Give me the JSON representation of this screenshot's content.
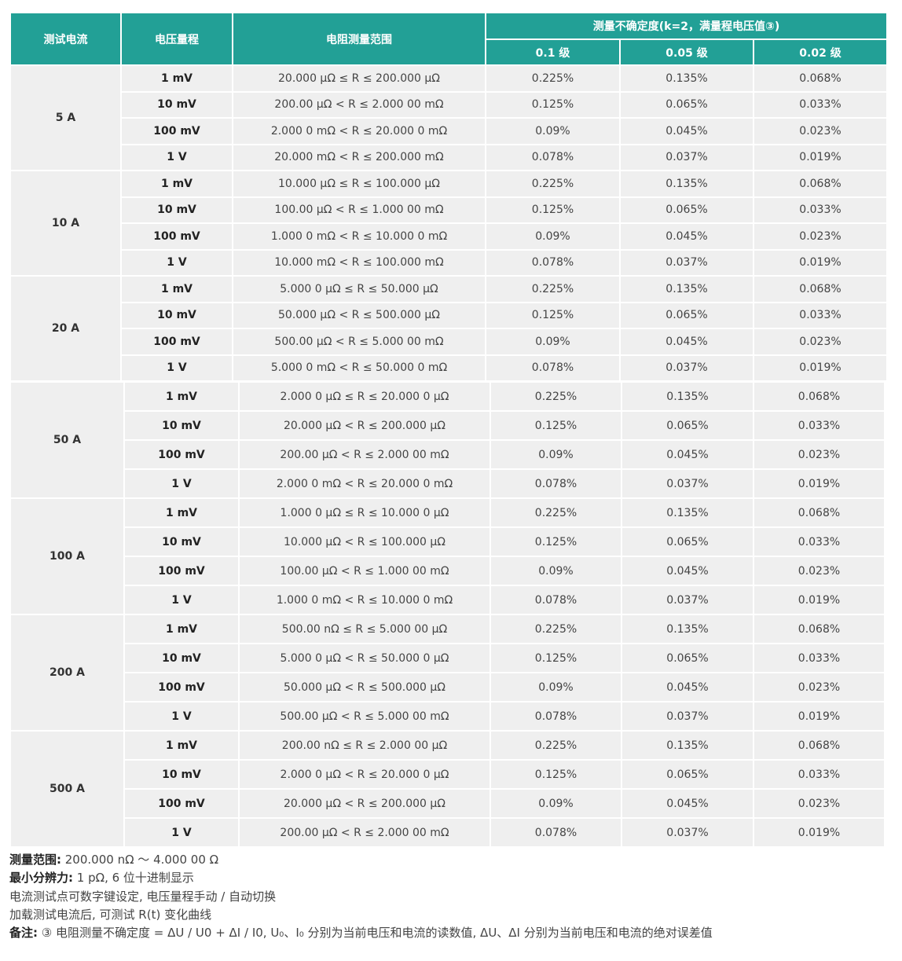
{
  "header": {
    "current": "测试电流",
    "voltage_range": "电压量程",
    "resistance_range": "电阻测量范围",
    "uncertainty": "测量不确定度(k=2，满量程电压值③)",
    "grades": [
      "0.1 级",
      "0.05 级",
      "0.02 级"
    ]
  },
  "groups": [
    {
      "current": "5 A",
      "rows": [
        [
          "1 mV",
          "20.000 μΩ ≤ R ≤ 200.000 μΩ",
          "0.225%",
          "0.135%",
          "0.068%"
        ],
        [
          "10 mV",
          "200.00 μΩ < R ≤ 2.000 00 mΩ",
          "0.125%",
          "0.065%",
          "0.033%"
        ],
        [
          "100 mV",
          "2.000 0 mΩ < R ≤ 20.000 0 mΩ",
          "0.09%",
          "0.045%",
          "0.023%"
        ],
        [
          "1 V",
          "20.000 mΩ < R ≤ 200.000 mΩ",
          "0.078%",
          "0.037%",
          "0.019%"
        ]
      ]
    },
    {
      "current": "10 A",
      "rows": [
        [
          "1 mV",
          "10.000 μΩ ≤ R ≤ 100.000 μΩ",
          "0.225%",
          "0.135%",
          "0.068%"
        ],
        [
          "10 mV",
          "100.00 μΩ < R ≤ 1.000 00 mΩ",
          "0.125%",
          "0.065%",
          "0.033%"
        ],
        [
          "100 mV",
          "1.000 0 mΩ < R ≤ 10.000 0 mΩ",
          "0.09%",
          "0.045%",
          "0.023%"
        ],
        [
          "1 V",
          "10.000 mΩ < R ≤ 100.000 mΩ",
          "0.078%",
          "0.037%",
          "0.019%"
        ]
      ]
    },
    {
      "current": "20 A",
      "rows": [
        [
          "1 mV",
          "5.000 0 μΩ ≤ R ≤ 50.000 μΩ",
          "0.225%",
          "0.135%",
          "0.068%"
        ],
        [
          "10 mV",
          "50.000 μΩ < R ≤ 500.000 μΩ",
          "0.125%",
          "0.065%",
          "0.033%"
        ],
        [
          "100 mV",
          "500.00 μΩ < R ≤ 5.000 00 mΩ",
          "0.09%",
          "0.045%",
          "0.023%"
        ],
        [
          "1 V",
          "5.000 0 mΩ < R ≤ 50.000 0 mΩ",
          "0.078%",
          "0.037%",
          "0.019%"
        ]
      ]
    },
    {
      "current": "50 A",
      "rows": [
        [
          "1 mV",
          "2.000 0 μΩ ≤ R ≤ 20.000 0 μΩ",
          "0.225%",
          "0.135%",
          "0.068%"
        ],
        [
          "10 mV",
          "20.000 μΩ < R ≤ 200.000 μΩ",
          "0.125%",
          "0.065%",
          "0.033%"
        ],
        [
          "100 mV",
          "200.00 μΩ < R ≤ 2.000 00 mΩ",
          "0.09%",
          "0.045%",
          "0.023%"
        ],
        [
          "1 V",
          "2.000 0 mΩ < R ≤ 20.000 0 mΩ",
          "0.078%",
          "0.037%",
          "0.019%"
        ]
      ]
    },
    {
      "current": "100 A",
      "rows": [
        [
          "1 mV",
          "1.000 0 μΩ ≤ R ≤ 10.000 0 μΩ",
          "0.225%",
          "0.135%",
          "0.068%"
        ],
        [
          "10 mV",
          "10.000 μΩ < R ≤ 100.000 μΩ",
          "0.125%",
          "0.065%",
          "0.033%"
        ],
        [
          "100 mV",
          "100.00 μΩ < R ≤ 1.000 00 mΩ",
          "0.09%",
          "0.045%",
          "0.023%"
        ],
        [
          "1 V",
          "1.000 0 mΩ < R ≤ 10.000 0 mΩ",
          "0.078%",
          "0.037%",
          "0.019%"
        ]
      ]
    },
    {
      "current": "200 A",
      "rows": [
        [
          "1 mV",
          "500.00 nΩ ≤ R ≤ 5.000 00 μΩ",
          "0.225%",
          "0.135%",
          "0.068%"
        ],
        [
          "10 mV",
          "5.000 0 μΩ < R ≤ 50.000 0 μΩ",
          "0.125%",
          "0.065%",
          "0.033%"
        ],
        [
          "100 mV",
          "50.000 μΩ < R ≤ 500.000 μΩ",
          "0.09%",
          "0.045%",
          "0.023%"
        ],
        [
          "1 V",
          "500.00 μΩ < R ≤ 5.000 00 mΩ",
          "0.078%",
          "0.037%",
          "0.019%"
        ]
      ]
    },
    {
      "current": "500 A",
      "rows": [
        [
          "1 mV",
          "200.00 nΩ ≤ R ≤ 2.000 00 μΩ",
          "0.225%",
          "0.135%",
          "0.068%"
        ],
        [
          "10 mV",
          "2.000 0 μΩ < R ≤ 20.000 0 μΩ",
          "0.125%",
          "0.065%",
          "0.033%"
        ],
        [
          "100 mV",
          "20.000 μΩ < R ≤ 200.000 μΩ",
          "0.09%",
          "0.045%",
          "0.023%"
        ],
        [
          "1 V",
          "200.00 μΩ < R ≤ 2.000 00 mΩ",
          "0.078%",
          "0.037%",
          "0.019%"
        ]
      ]
    }
  ],
  "notes": {
    "range_label": "测量范围:",
    "range_value": " 200.000 nΩ ～ 4.000 00 Ω",
    "resolution_label": "最小分辨力:",
    "resolution_value": " 1 pΩ, 6 位十进制显示",
    "line3": "电流测试点可数字键设定, 电压量程手动 / 自动切换",
    "line4": "加载测试电流后, 可测试 R(t) 变化曲线",
    "remark_label": "备注:",
    "remark_value": " ③ 电阻测量不确定度 = ΔU / U0 + ΔI / I0, U₀、I₀ 分别为当前电压和电流的读数值, ΔU、ΔI 分别为当前电压和电流的绝对误差值"
  },
  "colors": {
    "header": "#22a096",
    "cell": "#efefef"
  }
}
